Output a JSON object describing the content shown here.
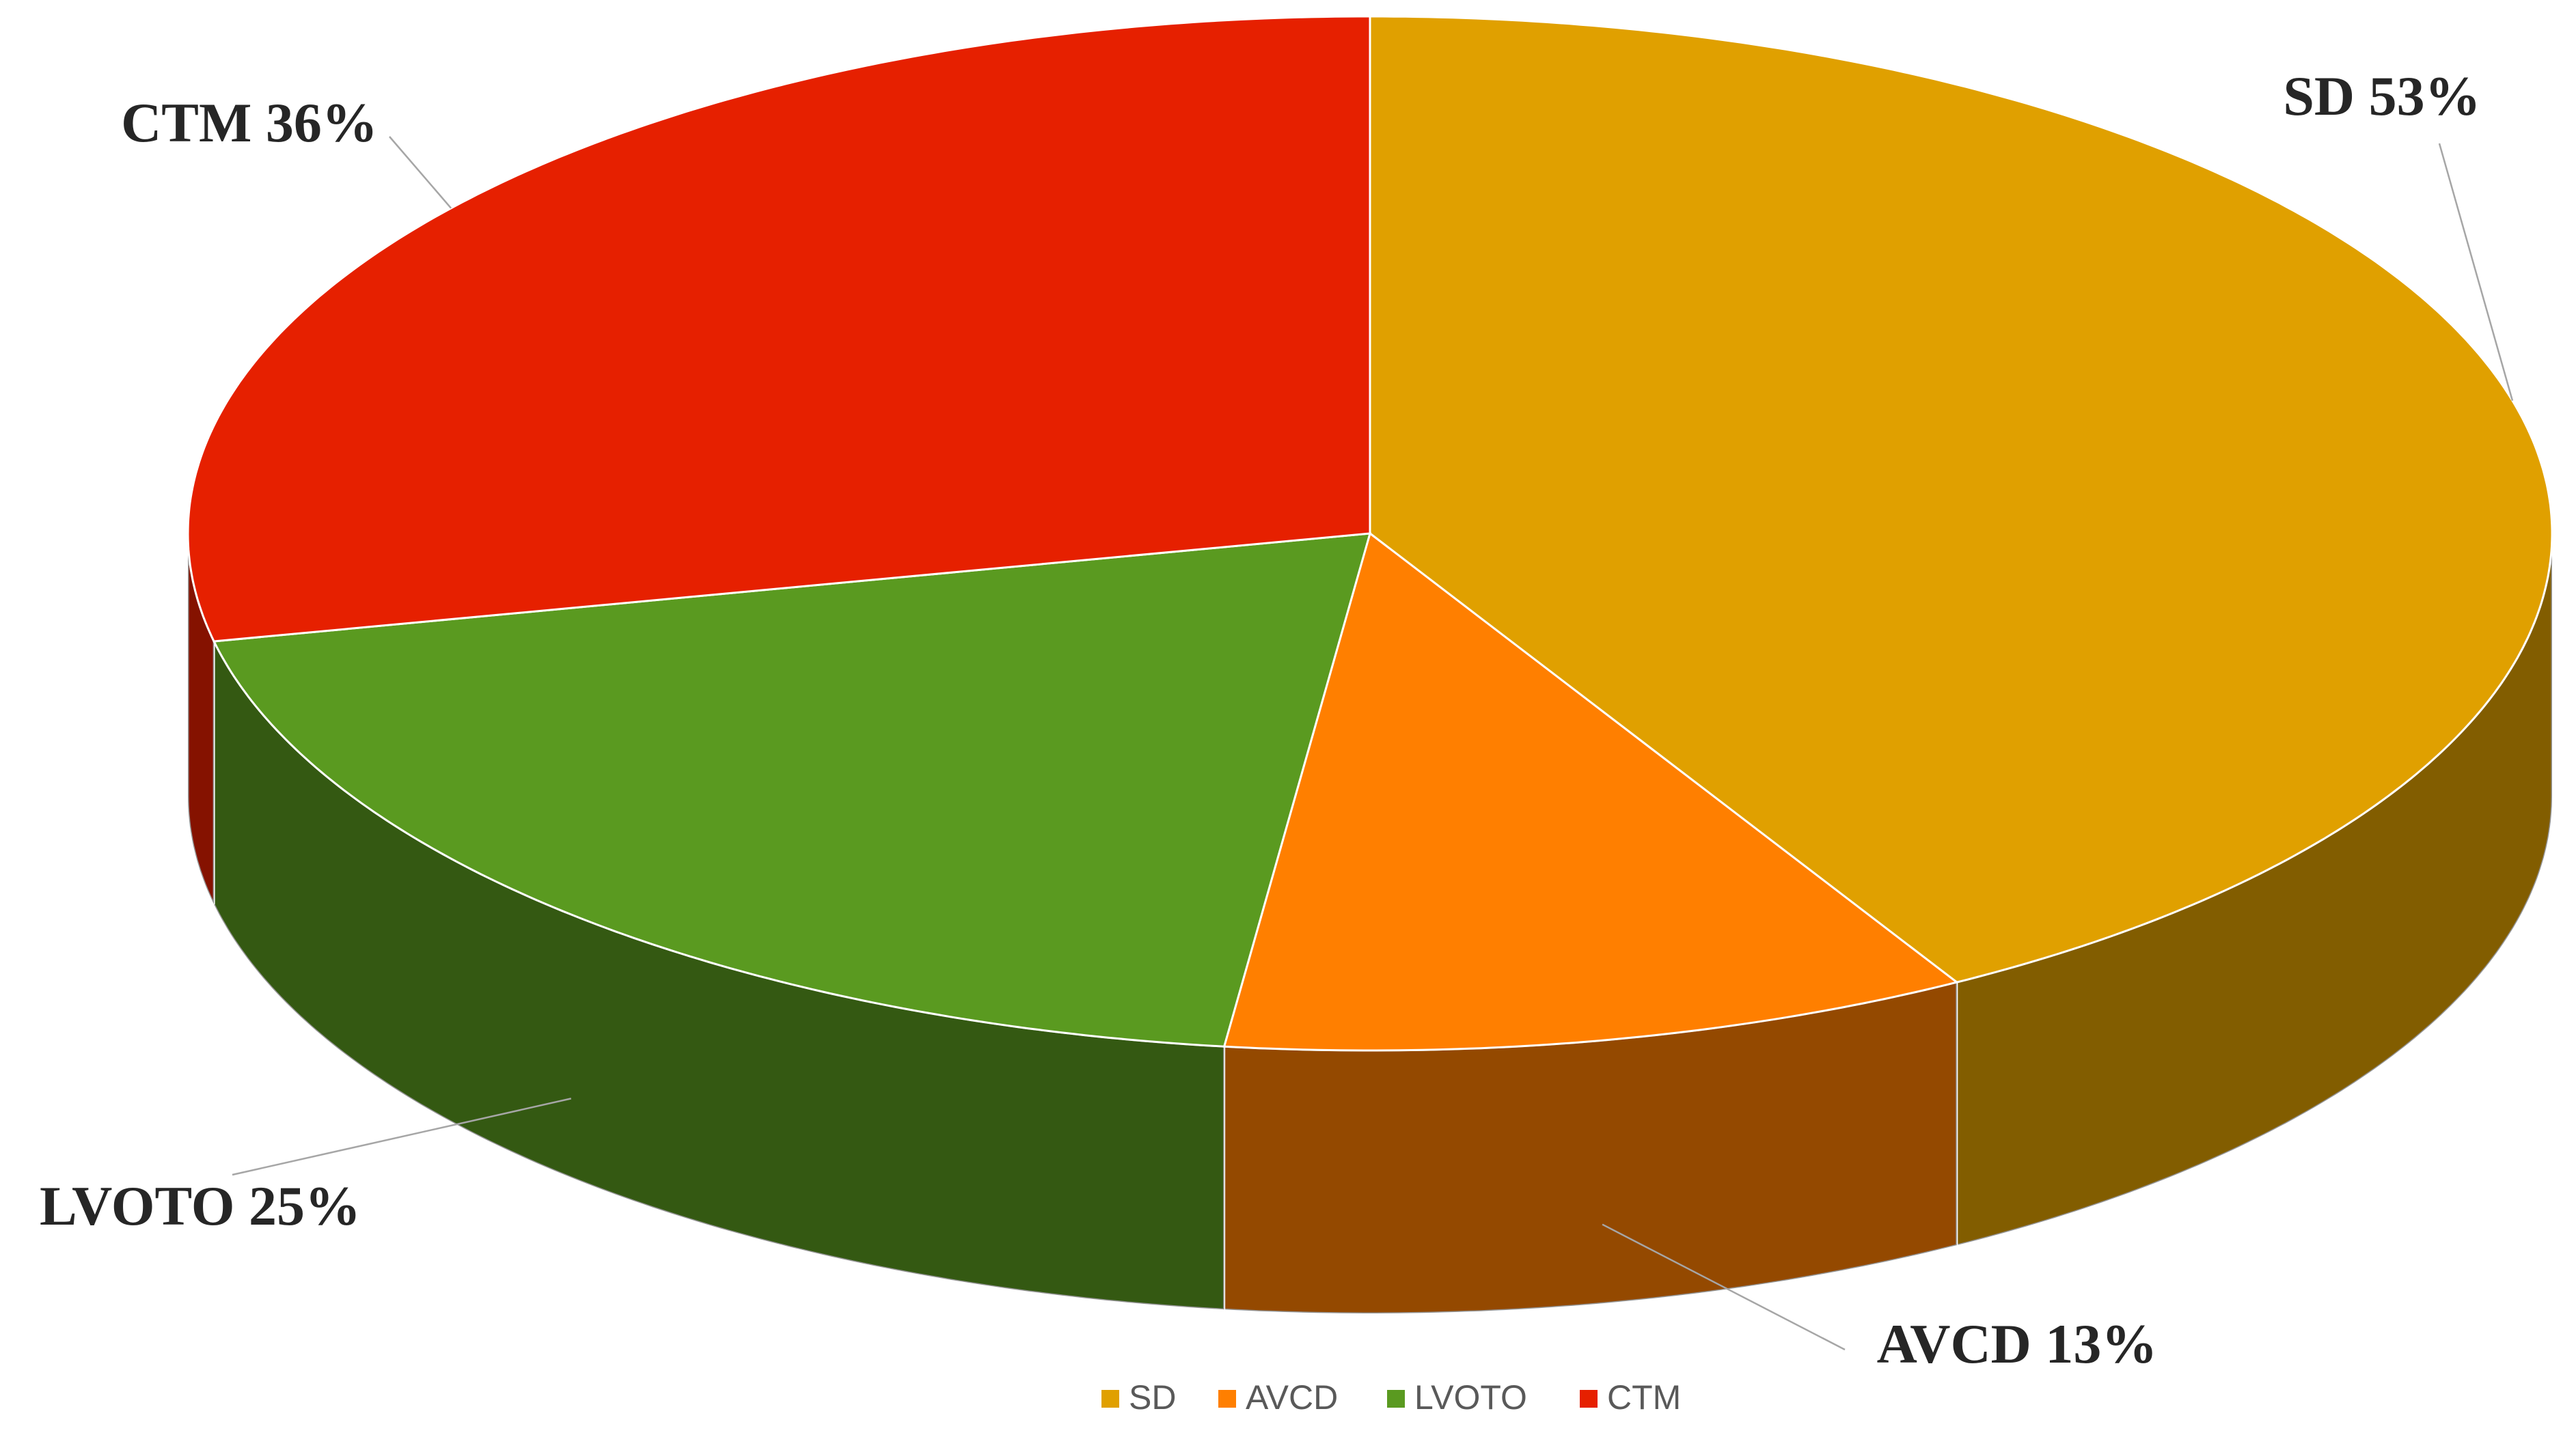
{
  "chart_data": {
    "type": "pie",
    "categories": [
      "SD",
      "AVCD",
      "LVOTO",
      "CTM"
    ],
    "values": [
      53,
      13,
      25,
      36
    ],
    "value_labels": [
      "SD 53%",
      "AVCD 13%",
      "LVOTO 25%",
      "CTM 36%"
    ],
    "colors": [
      "#e0a000",
      "#ff7f00",
      "#5a9a20",
      "#e62000"
    ],
    "legend": "bottom"
  }
}
